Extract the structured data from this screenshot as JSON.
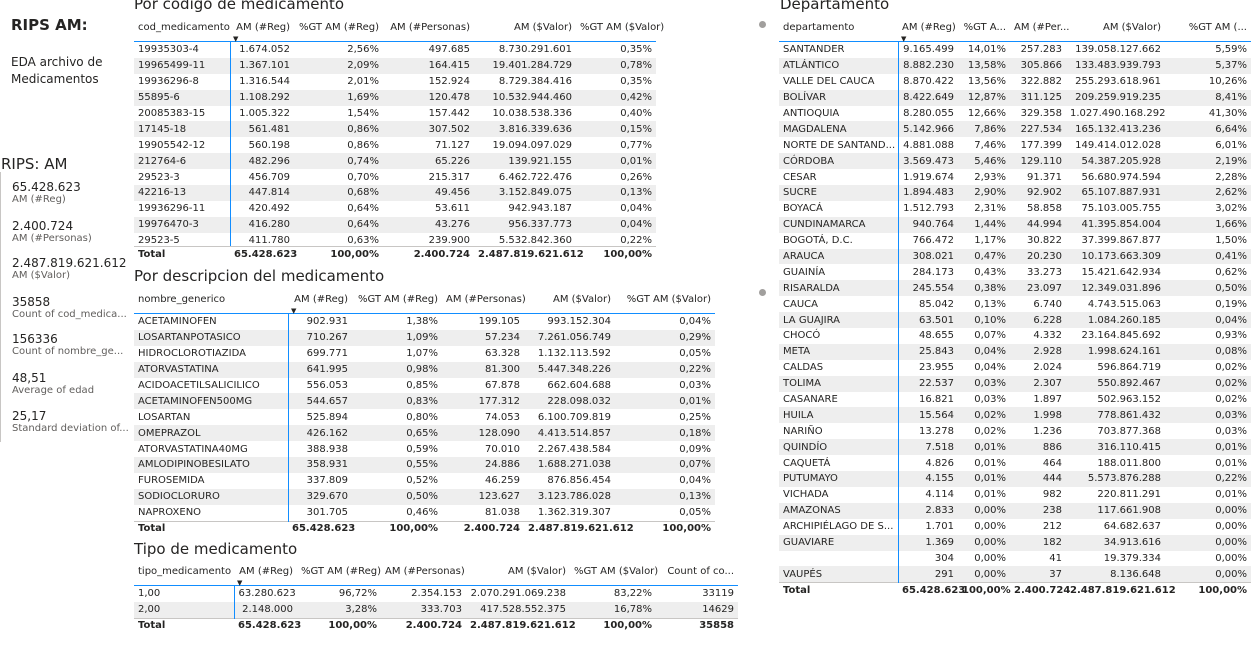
{
  "header": {
    "title": "RIPS AM:",
    "subtitle_line1": "EDA archivo de",
    "subtitle_line2": "Medicamentos"
  },
  "kpi": {
    "title": "RIPS: AM",
    "cards": [
      {
        "value": "65.428.623",
        "label": "AM (#Reg)"
      },
      {
        "value": "2.400.724",
        "label": "AM (#Personas)"
      },
      {
        "value": "2.487.819.621.612",
        "label": "AM ($Valor)"
      },
      {
        "value": "35858",
        "label": "Count of cod_medica..."
      },
      {
        "value": "156336",
        "label": "Count of nombre_ge..."
      },
      {
        "value": "48,51",
        "label": "Average of edad"
      },
      {
        "value": "25,17",
        "label": "Standard deviation of..."
      }
    ]
  },
  "codigo": {
    "title": "Por codigo de medicamento",
    "headers": [
      "cod_medicamento",
      "AM (#Reg)",
      "%GT AM (#Reg)",
      "AM (#Personas)",
      "AM ($Valor)",
      "%GT AM ($Valor)"
    ],
    "rows": [
      [
        "19935303-4",
        "1.674.052",
        "2,56%",
        "497.685",
        "8.730.291.601",
        "0,35%"
      ],
      [
        "19965499-11",
        "1.367.101",
        "2,09%",
        "164.415",
        "19.401.284.729",
        "0,78%"
      ],
      [
        "19936296-8",
        "1.316.544",
        "2,01%",
        "152.924",
        "8.729.384.416",
        "0,35%"
      ],
      [
        "55895-6",
        "1.108.292",
        "1,69%",
        "120.478",
        "10.532.944.460",
        "0,42%"
      ],
      [
        "20085383-15",
        "1.005.322",
        "1,54%",
        "157.442",
        "10.038.538.336",
        "0,40%"
      ],
      [
        "17145-18",
        "561.481",
        "0,86%",
        "307.502",
        "3.816.339.636",
        "0,15%"
      ],
      [
        "19905542-12",
        "560.198",
        "0,86%",
        "71.127",
        "19.094.097.029",
        "0,77%"
      ],
      [
        "212764-6",
        "482.296",
        "0,74%",
        "65.226",
        "139.921.155",
        "0,01%"
      ],
      [
        "29523-3",
        "456.709",
        "0,70%",
        "215.317",
        "6.462.722.476",
        "0,26%"
      ],
      [
        "42216-13",
        "447.814",
        "0,68%",
        "49.456",
        "3.152.849.075",
        "0,13%"
      ],
      [
        "19936296-11",
        "420.492",
        "0,64%",
        "53.611",
        "942.943.187",
        "0,04%"
      ],
      [
        "19976470-3",
        "416.280",
        "0,64%",
        "43.276",
        "956.337.773",
        "0,04%"
      ],
      [
        "29523-5",
        "411.780",
        "0,63%",
        "239.900",
        "5.532.842.360",
        "0,22%"
      ]
    ],
    "total": [
      "Total",
      "65.428.623",
      "100,00%",
      "2.400.724",
      "2.487.819.621.612",
      "100,00%"
    ]
  },
  "descripcion": {
    "title": "Por descripcion del medicamento",
    "headers": [
      "nombre_generico",
      "AM (#Reg)",
      "%GT AM (#Reg)",
      "AM (#Personas)",
      "AM ($Valor)",
      "%GT AM ($Valor)"
    ],
    "rows": [
      [
        "ACETAMINOFEN",
        "902.931",
        "1,38%",
        "199.105",
        "993.152.304",
        "0,04%"
      ],
      [
        "LOSARTANPOTASICO",
        "710.267",
        "1,09%",
        "57.234",
        "7.261.056.749",
        "0,29%"
      ],
      [
        "HIDROCLOROTIAZIDA",
        "699.771",
        "1,07%",
        "63.328",
        "1.132.113.592",
        "0,05%"
      ],
      [
        "ATORVASTATINA",
        "641.995",
        "0,98%",
        "81.300",
        "5.447.348.226",
        "0,22%"
      ],
      [
        "ACIDOACETILSALICILICO",
        "556.053",
        "0,85%",
        "67.878",
        "662.604.688",
        "0,03%"
      ],
      [
        "ACETAMINOFEN500MG",
        "544.657",
        "0,83%",
        "177.312",
        "228.098.032",
        "0,01%"
      ],
      [
        "LOSARTAN",
        "525.894",
        "0,80%",
        "74.053",
        "6.100.709.819",
        "0,25%"
      ],
      [
        "OMEPRAZOL",
        "426.162",
        "0,65%",
        "128.090",
        "4.413.514.857",
        "0,18%"
      ],
      [
        "ATORVASTATINA40MG",
        "388.938",
        "0,59%",
        "70.010",
        "2.267.438.584",
        "0,09%"
      ],
      [
        "AMLODIPINOBESILATO",
        "358.931",
        "0,55%",
        "24.886",
        "1.688.271.038",
        "0,07%"
      ],
      [
        "FUROSEMIDA",
        "337.809",
        "0,52%",
        "46.259",
        "876.856.454",
        "0,04%"
      ],
      [
        "SODIOCLORURO",
        "329.670",
        "0,50%",
        "123.627",
        "3.123.786.028",
        "0,13%"
      ],
      [
        "NAPROXENO",
        "301.705",
        "0,46%",
        "81.038",
        "1.362.319.307",
        "0,05%"
      ]
    ],
    "total": [
      "Total",
      "65.428.623",
      "100,00%",
      "2.400.724",
      "2.487.819.621.612",
      "100,00%"
    ]
  },
  "tipo": {
    "title": "Tipo de medicamento",
    "headers": [
      "tipo_medicamento",
      "AM (#Reg)",
      "%GT AM (#Reg)",
      "AM (#Personas)",
      "AM ($Valor)",
      "%GT AM ($Valor)",
      "Count of co..."
    ],
    "rows": [
      [
        "1,00",
        "63.280.623",
        "96,72%",
        "2.354.153",
        "2.070.291.069.238",
        "83,22%",
        "33119"
      ],
      [
        "2,00",
        "2.148.000",
        "3,28%",
        "333.703",
        "417.528.552.375",
        "16,78%",
        "14629"
      ]
    ],
    "total": [
      "Total",
      "65.428.623",
      "100,00%",
      "2.400.724",
      "2.487.819.621.612",
      "100,00%",
      "35858"
    ]
  },
  "departamento": {
    "title": "Departamento",
    "headers": [
      "departamento",
      "AM (#Reg)",
      "%GT A...",
      "AM (#Per...",
      "AM ($Valor)",
      "%GT AM (..."
    ],
    "rows": [
      [
        "SANTANDER",
        "9.165.499",
        "14,01%",
        "257.283",
        "139.058.127.662",
        "5,59%"
      ],
      [
        "ATLÁNTICO",
        "8.882.230",
        "13,58%",
        "305.866",
        "133.483.939.793",
        "5,37%"
      ],
      [
        "VALLE DEL CAUCA",
        "8.870.422",
        "13,56%",
        "322.882",
        "255.293.618.961",
        "10,26%"
      ],
      [
        "BOLÍVAR",
        "8.422.649",
        "12,87%",
        "311.125",
        "209.259.919.235",
        "8,41%"
      ],
      [
        "ANTIOQUIA",
        "8.280.055",
        "12,66%",
        "329.358",
        "1.027.490.168.292",
        "41,30%"
      ],
      [
        "MAGDALENA",
        "5.142.966",
        "7,86%",
        "227.534",
        "165.132.413.236",
        "6,64%"
      ],
      [
        "NORTE DE SANTAND...",
        "4.881.088",
        "7,46%",
        "177.399",
        "149.414.012.028",
        "6,01%"
      ],
      [
        "CÓRDOBA",
        "3.569.473",
        "5,46%",
        "129.110",
        "54.387.205.928",
        "2,19%"
      ],
      [
        "CESAR",
        "1.919.674",
        "2,93%",
        "91.371",
        "56.680.974.594",
        "2,28%"
      ],
      [
        "SUCRE",
        "1.894.483",
        "2,90%",
        "92.902",
        "65.107.887.931",
        "2,62%"
      ],
      [
        "BOYACÁ",
        "1.512.793",
        "2,31%",
        "58.858",
        "75.103.005.755",
        "3,02%"
      ],
      [
        "CUNDINAMARCA",
        "940.764",
        "1,44%",
        "44.994",
        "41.395.854.004",
        "1,66%"
      ],
      [
        "BOGOTÁ, D.C.",
        "766.472",
        "1,17%",
        "30.822",
        "37.399.867.877",
        "1,50%"
      ],
      [
        "ARAUCA",
        "308.021",
        "0,47%",
        "20.230",
        "10.173.663.309",
        "0,41%"
      ],
      [
        "GUAINÍA",
        "284.173",
        "0,43%",
        "33.273",
        "15.421.642.934",
        "0,62%"
      ],
      [
        "RISARALDA",
        "245.554",
        "0,38%",
        "23.097",
        "12.349.031.896",
        "0,50%"
      ],
      [
        "CAUCA",
        "85.042",
        "0,13%",
        "6.740",
        "4.743.515.063",
        "0,19%"
      ],
      [
        "LA GUAJIRA",
        "63.501",
        "0,10%",
        "6.228",
        "1.084.260.185",
        "0,04%"
      ],
      [
        "CHOCÓ",
        "48.655",
        "0,07%",
        "4.332",
        "23.164.845.692",
        "0,93%"
      ],
      [
        "META",
        "25.843",
        "0,04%",
        "2.928",
        "1.998.624.161",
        "0,08%"
      ],
      [
        "CALDAS",
        "23.955",
        "0,04%",
        "2.024",
        "596.864.719",
        "0,02%"
      ],
      [
        "TOLIMA",
        "22.537",
        "0,03%",
        "2.307",
        "550.892.467",
        "0,02%"
      ],
      [
        "CASANARE",
        "16.821",
        "0,03%",
        "1.897",
        "502.963.152",
        "0,02%"
      ],
      [
        "HUILA",
        "15.564",
        "0,02%",
        "1.998",
        "778.861.432",
        "0,03%"
      ],
      [
        "NARIÑO",
        "13.278",
        "0,02%",
        "1.236",
        "703.877.368",
        "0,03%"
      ],
      [
        "QUINDÍO",
        "7.518",
        "0,01%",
        "886",
        "316.110.415",
        "0,01%"
      ],
      [
        "CAQUETÁ",
        "4.826",
        "0,01%",
        "464",
        "188.011.800",
        "0,01%"
      ],
      [
        "PUTUMAYO",
        "4.155",
        "0,01%",
        "444",
        "5.573.876.288",
        "0,22%"
      ],
      [
        "VICHADA",
        "4.114",
        "0,01%",
        "982",
        "220.811.291",
        "0,01%"
      ],
      [
        "AMAZONAS",
        "2.833",
        "0,00%",
        "238",
        "117.661.908",
        "0,00%"
      ],
      [
        "ARCHIPIÉLAGO DE S...",
        "1.701",
        "0,00%",
        "212",
        "64.682.637",
        "0,00%"
      ],
      [
        "GUAVIARE",
        "1.369",
        "0,00%",
        "182",
        "34.913.616",
        "0,00%"
      ],
      [
        "",
        "304",
        "0,00%",
        "41",
        "19.379.334",
        "0,00%"
      ],
      [
        "VAUPÉS",
        "291",
        "0,00%",
        "37",
        "8.136.648",
        "0,00%"
      ]
    ],
    "total": [
      "Total",
      "65.428.623",
      "100,00%",
      "2.400.724",
      "2.487.819.621.612",
      "100,00%"
    ]
  }
}
